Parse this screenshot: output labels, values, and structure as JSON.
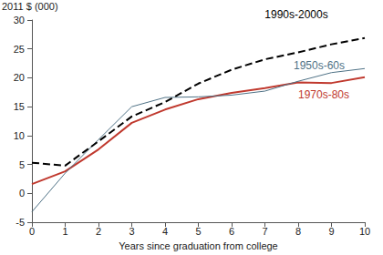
{
  "chart_data": {
    "type": "line",
    "ylabel": "2011 $ (000)",
    "xlabel": "Years since graduation from college",
    "x": [
      0,
      1,
      2,
      3,
      4,
      5,
      6,
      7,
      8,
      9,
      10
    ],
    "series": [
      {
        "name": "1990s-2000s",
        "color": "#000000",
        "line_style": "dashed",
        "values": [
          5.3,
          4.8,
          9.0,
          13.3,
          15.8,
          19.0,
          21.4,
          23.2,
          24.4,
          25.8,
          26.9
        ]
      },
      {
        "name": "1950s-60s",
        "color": "#4f7286",
        "line_style": "solid",
        "values": [
          -3.2,
          3.5,
          9.3,
          15.0,
          16.6,
          16.7,
          17.0,
          17.7,
          19.4,
          20.9,
          21.6
        ]
      },
      {
        "name": "1970s-80s",
        "color": "#c0392e",
        "line_style": "solid",
        "values": [
          1.6,
          3.8,
          7.6,
          12.2,
          14.5,
          16.3,
          17.4,
          18.2,
          19.2,
          19.1,
          20.1
        ]
      }
    ],
    "xlim": [
      0,
      10
    ],
    "xticks": [
      0,
      1,
      2,
      3,
      4,
      5,
      6,
      7,
      8,
      9,
      10
    ],
    "ylim": [
      -5,
      30
    ],
    "yticks": [
      -5,
      0,
      5,
      10,
      15,
      20,
      25,
      30
    ],
    "grid": false
  }
}
